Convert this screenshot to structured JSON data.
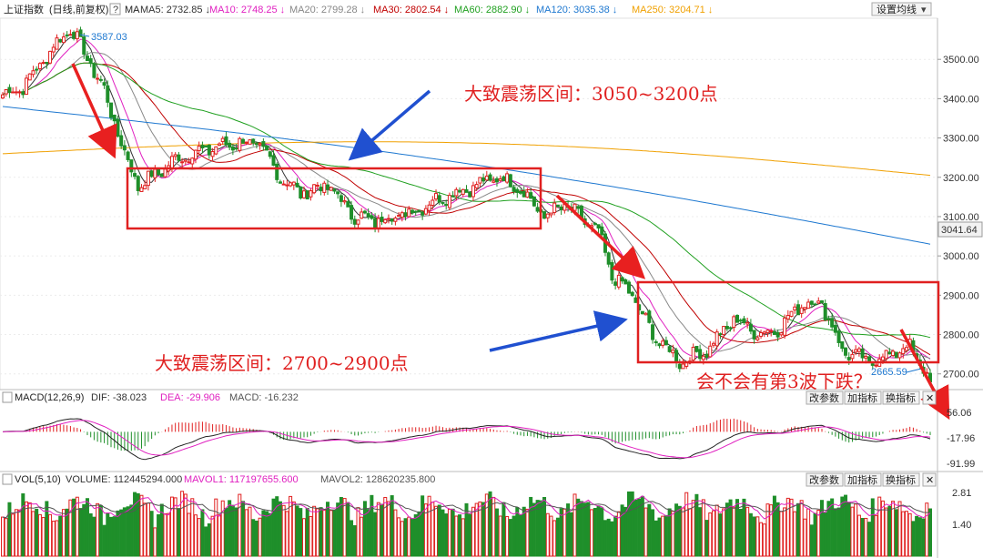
{
  "header": {
    "symbol": "上证指数",
    "period": "(日线,前复权)",
    "help": "?",
    "ma_label": "MA",
    "ma_items": [
      {
        "name": "MA5",
        "value": "2732.85",
        "arrow": "↓",
        "color": "#333333"
      },
      {
        "name": "MA10",
        "value": "2748.25",
        "arrow": "↓",
        "color": "#e020c0"
      },
      {
        "name": "MA20",
        "value": "2799.28",
        "arrow": "↓",
        "color": "#888888"
      },
      {
        "name": "MA30",
        "value": "2802.54",
        "arrow": "↓",
        "color": "#c00000"
      },
      {
        "name": "MA60",
        "value": "2882.90",
        "arrow": "↓",
        "color": "#20a020"
      },
      {
        "name": "MA120",
        "value": "3035.38",
        "arrow": "↓",
        "color": "#1e78d0"
      },
      {
        "name": "MA250",
        "value": "3204.71",
        "arrow": "↓",
        "color": "#f0a000"
      }
    ],
    "settings_button": "设置均线",
    "settings_arrow": "▾"
  },
  "price_axis": {
    "ticks": [
      "3500.00",
      "3400.00",
      "3300.00",
      "3200.00",
      "3100.00",
      "3000.00",
      "2900.00",
      "2800.00",
      "2700.00"
    ],
    "tick_values": [
      3500,
      3400,
      3300,
      3200,
      3100,
      3000,
      2900,
      2800,
      2700
    ],
    "current_value": "3041.64",
    "ylim": [
      2660,
      3600
    ]
  },
  "macd": {
    "title": "MACD(12,26,9)",
    "dif": "DIF: -38.023",
    "dea": "DEA: -29.906",
    "macd": "MACD: -16.232",
    "ticks": [
      "56.06",
      "-17.96",
      "-91.99"
    ],
    "tick_values": [
      56.06,
      -17.96,
      -91.99
    ]
  },
  "vol": {
    "title": "VOL(5,10)",
    "volume": "VOLUME: 112445294.000",
    "mavol1": "MAVOL1: 117197655.600",
    "mavol2": "MAVOL2: 128620235.800",
    "ticks": [
      "2.81",
      "1.40"
    ],
    "tick_values": [
      2.81,
      1.4
    ]
  },
  "panel_buttons": [
    "改参数",
    "加指标",
    "换指标",
    "✕"
  ],
  "annotations": {
    "high_label": "3587.03",
    "low_label": "2665.59",
    "range1": "大致震荡区间：3050~3200点",
    "range2": "大致震荡区间：2700~2900点",
    "question": "会不会有第3波下跌？"
  },
  "colors": {
    "up": "#e02020",
    "down": "#1f8f2a",
    "ma5": "#333333",
    "ma10": "#e020c0",
    "ma20": "#888888",
    "ma30": "#c00000",
    "ma60": "#20a020",
    "ma120": "#1e78d0",
    "ma250": "#f0a000",
    "box": "#e02020",
    "arrow_red": "#e82020",
    "arrow_blue": "#2050d0"
  },
  "chart_data": {
    "type": "candlestick",
    "title": "上证指数",
    "ylim": [
      2660,
      3600
    ],
    "anchors": [
      [
        0,
        3410
      ],
      [
        6,
        3430
      ],
      [
        14,
        3520
      ],
      [
        20,
        3580
      ],
      [
        24,
        3520
      ],
      [
        30,
        3420
      ],
      [
        36,
        3260
      ],
      [
        40,
        3180
      ],
      [
        44,
        3200
      ],
      [
        52,
        3250
      ],
      [
        60,
        3270
      ],
      [
        70,
        3290
      ],
      [
        76,
        3280
      ],
      [
        82,
        3200
      ],
      [
        88,
        3160
      ],
      [
        96,
        3180
      ],
      [
        104,
        3100
      ],
      [
        110,
        3090
      ],
      [
        120,
        3110
      ],
      [
        130,
        3150
      ],
      [
        140,
        3180
      ],
      [
        146,
        3200
      ],
      [
        152,
        3180
      ],
      [
        160,
        3100
      ],
      [
        166,
        3130
      ],
      [
        176,
        3060
      ],
      [
        180,
        2950
      ],
      [
        186,
        2900
      ],
      [
        192,
        2800
      ],
      [
        200,
        2730
      ],
      [
        208,
        2760
      ],
      [
        216,
        2840
      ],
      [
        224,
        2800
      ],
      [
        230,
        2820
      ],
      [
        236,
        2880
      ],
      [
        242,
        2880
      ],
      [
        248,
        2760
      ],
      [
        256,
        2730
      ],
      [
        262,
        2750
      ],
      [
        268,
        2770
      ],
      [
        274,
        2680
      ]
    ]
  }
}
